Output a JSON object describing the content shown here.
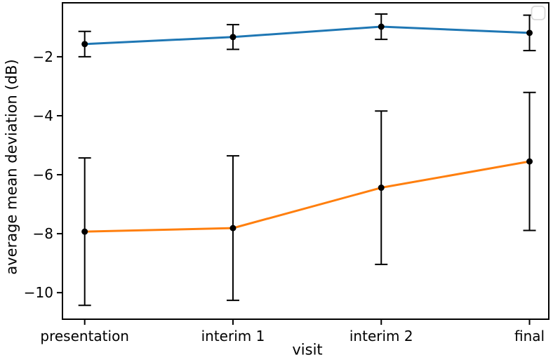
{
  "chart_data": {
    "type": "line",
    "categories": [
      "presentation",
      "interim 1",
      "interim 2",
      "final"
    ],
    "series": [
      {
        "name": "",
        "color": "#1f77b4",
        "values": [
          -1.57,
          -1.33,
          -0.98,
          -1.19
        ],
        "errors": [
          0.43,
          0.42,
          0.43,
          0.6
        ]
      },
      {
        "name": "",
        "color": "#ff7f0e",
        "values": [
          -7.93,
          -7.81,
          -6.44,
          -5.55
        ],
        "errors": [
          2.5,
          2.45,
          2.6,
          2.34
        ]
      }
    ],
    "title": "",
    "xlabel": "visit",
    "ylabel": "average mean deviation (dB)",
    "yticks": {
      "values": [
        -2,
        -4,
        -6,
        -8,
        -10
      ],
      "labels": [
        "−2",
        "−4",
        "−6",
        "−8",
        "−10"
      ]
    },
    "xlim": [
      -0.15,
      3.13
    ],
    "ylim": [
      -10.9,
      -0.17
    ],
    "grid": false,
    "legend": {
      "position": "upper right",
      "entries": []
    },
    "marker_color": "#000000",
    "errorbar_color": "#000000",
    "frame_color": "#000000",
    "background": "#ffffff"
  }
}
